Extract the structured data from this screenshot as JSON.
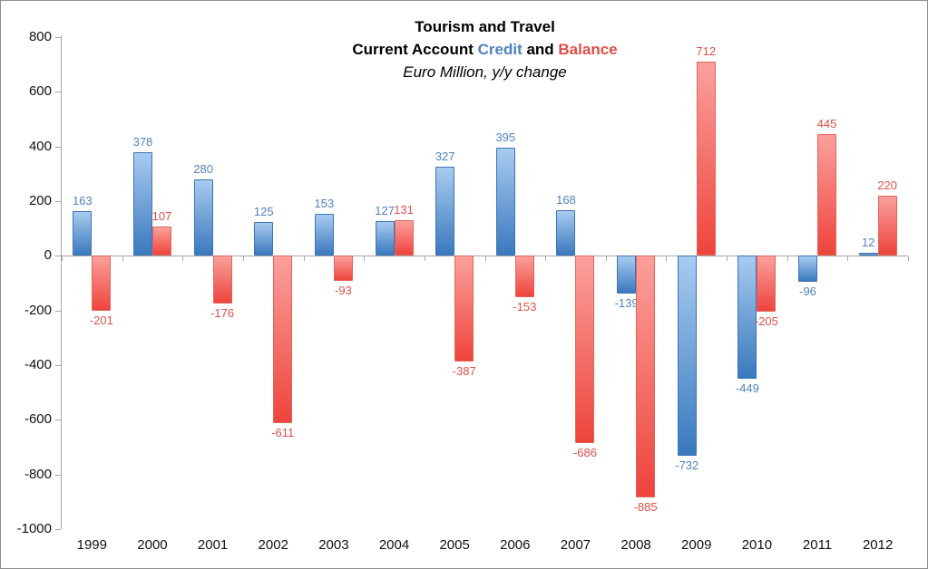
{
  "chart_data": {
    "type": "bar",
    "title": "Tourism and Travel",
    "subtitle_parts": {
      "prefix": "Current Account ",
      "credit": "Credit",
      "and": " and ",
      "balance": "Balance"
    },
    "subtitle2": "Euro Million, y/y change",
    "categories": [
      "1999",
      "2000",
      "2001",
      "2002",
      "2003",
      "2004",
      "2005",
      "2006",
      "2007",
      "2008",
      "2009",
      "2010",
      "2011",
      "2012"
    ],
    "series": [
      {
        "name": "Credit",
        "values": [
          163,
          378,
          280,
          125,
          153,
          127,
          327,
          395,
          168,
          -139,
          -732,
          -449,
          -96,
          12
        ],
        "color_top": "#a8cbf0",
        "color_bottom": "#3a79be",
        "border_color": "#3c74b4",
        "label_color": "#4e81bd"
      },
      {
        "name": "Balance",
        "values": [
          -201,
          107,
          -176,
          -611,
          -93,
          131,
          -387,
          -153,
          -686,
          -885,
          712,
          -205,
          445,
          220
        ],
        "color_top": "#fba09c",
        "color_bottom": "#ee443c",
        "border_color": "#e2645c",
        "label_color": "#de4f48"
      }
    ],
    "ylim": [
      -1000,
      800
    ],
    "ytick_step": 200,
    "yticks": [
      "800",
      "600",
      "400",
      "200",
      "0",
      "-200",
      "-400",
      "-600",
      "-800",
      "-1000"
    ],
    "axis_color": "#a6a6a6",
    "tick_label_color": "#111111",
    "grid": false,
    "legend_position": "none"
  }
}
